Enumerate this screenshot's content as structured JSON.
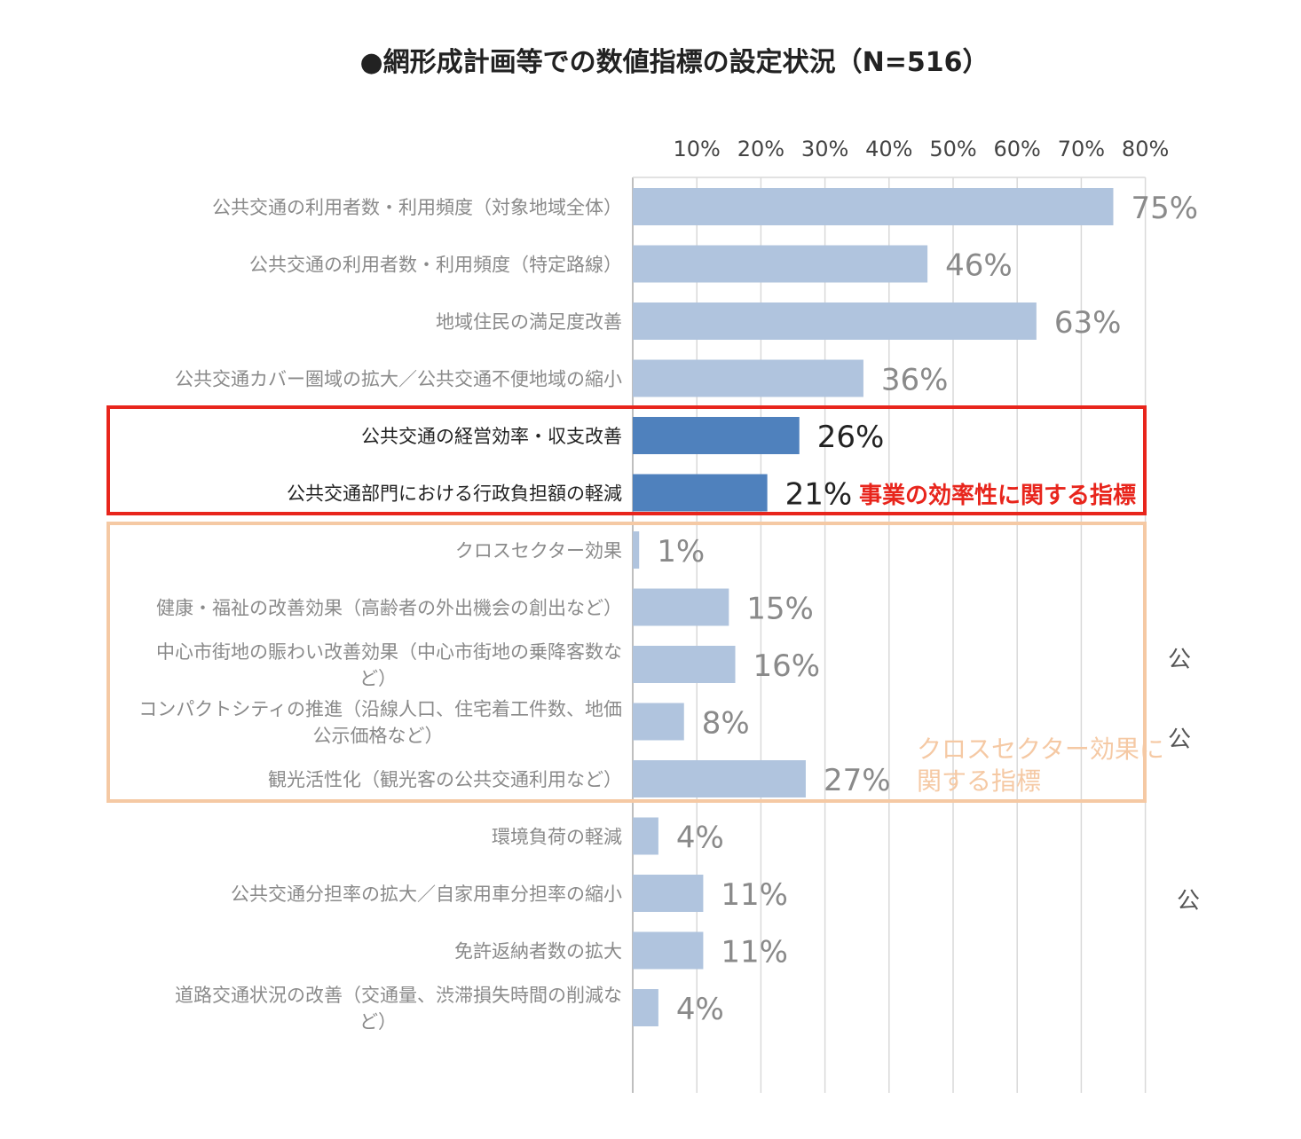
{
  "chart_data": {
    "type": "bar",
    "orientation": "horizontal",
    "title": "●網形成計画等での数値指標の設定状況（N=516）",
    "xlim": [
      0,
      80
    ],
    "x_ticks": [
      "10%",
      "20%",
      "30%",
      "40%",
      "50%",
      "60%",
      "70%",
      "80%"
    ],
    "grid": true,
    "categories": [
      [
        "公共交通の利用者数・利用頻度（対象地域全体）"
      ],
      [
        "公共交通の利用者数・利用頻度（特定路線）"
      ],
      [
        "地域住民の満足度改善"
      ],
      [
        "公共交通カバー圏域の拡大／公共交通不便地域の縮小"
      ],
      [
        "公共交通の経営効率・収支改善"
      ],
      [
        "公共交通部門における行政負担額の軽減"
      ],
      [
        "クロスセクター効果"
      ],
      [
        "健康・福祉の改善効果（高齢者の外出機会の創出など）"
      ],
      [
        "中心市街地の賑わい改善効果（中心市街地の乗降客数な",
        "ど）"
      ],
      [
        "コンパクトシティの推進（沿線人口、住宅着工件数、地価",
        "公示価格など）"
      ],
      [
        "観光活性化（観光客の公共交通利用など）"
      ],
      [
        "環境負荷の軽減"
      ],
      [
        "公共交通分担率の拡大／自家用車分担率の縮小"
      ],
      [
        "免許返納者数の拡大"
      ],
      [
        "道路交通状況の改善（交通量、渋滞損失時間の削減な",
        "ど）"
      ]
    ],
    "values": [
      75,
      46,
      63,
      36,
      26,
      21,
      1,
      15,
      16,
      8,
      27,
      4,
      11,
      11,
      4
    ],
    "value_labels": [
      "75%",
      "46%",
      "63%",
      "36%",
      "26%",
      "21%",
      "1%",
      "15%",
      "16%",
      "8%",
      "27%",
      "4%",
      "11%",
      "11%",
      "4%"
    ],
    "highlight": [
      false,
      false,
      false,
      false,
      true,
      true,
      false,
      false,
      false,
      false,
      false,
      false,
      false,
      false,
      false
    ],
    "colors": {
      "bar": "#b0c4de",
      "bar_highlight": "#4f81bd",
      "label": "#8a8a8a",
      "label_highlight": "#222222",
      "grid": "#d9d9d9",
      "red_box": "#e8251c",
      "orange_box": "#f5c9a4",
      "orange_text": "#f5c9a4"
    },
    "annotations": {
      "red": "事業の効率性に関する指標",
      "orange": [
        "クロスセクター効果に",
        "関する指標"
      ]
    },
    "clipped_right_text": [
      "公",
      "公",
      "公"
    ]
  }
}
